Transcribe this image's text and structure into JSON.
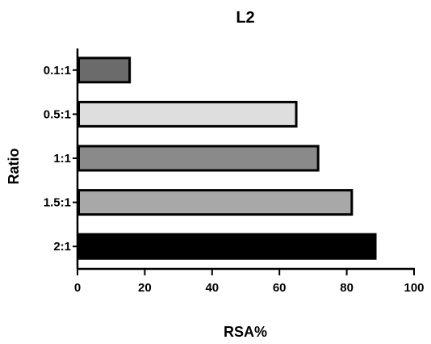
{
  "chart_data": {
    "type": "bar",
    "orientation": "horizontal",
    "title": "L2",
    "xlabel": "RSA%",
    "ylabel": "Ratio",
    "categories": [
      "0.1:1",
      "0.5:1",
      "1:1",
      "1.5:1",
      "2:1"
    ],
    "values": [
      15.5,
      65,
      71.5,
      81.5,
      88.5
    ],
    "bar_colors": [
      "#6b6b6b",
      "#dedede",
      "#8a8a8a",
      "#a8a8a8",
      "#000000"
    ],
    "xlim": [
      0,
      100
    ],
    "xticks": [
      0,
      20,
      40,
      60,
      80,
      100
    ],
    "grid": false,
    "legend": "none"
  }
}
